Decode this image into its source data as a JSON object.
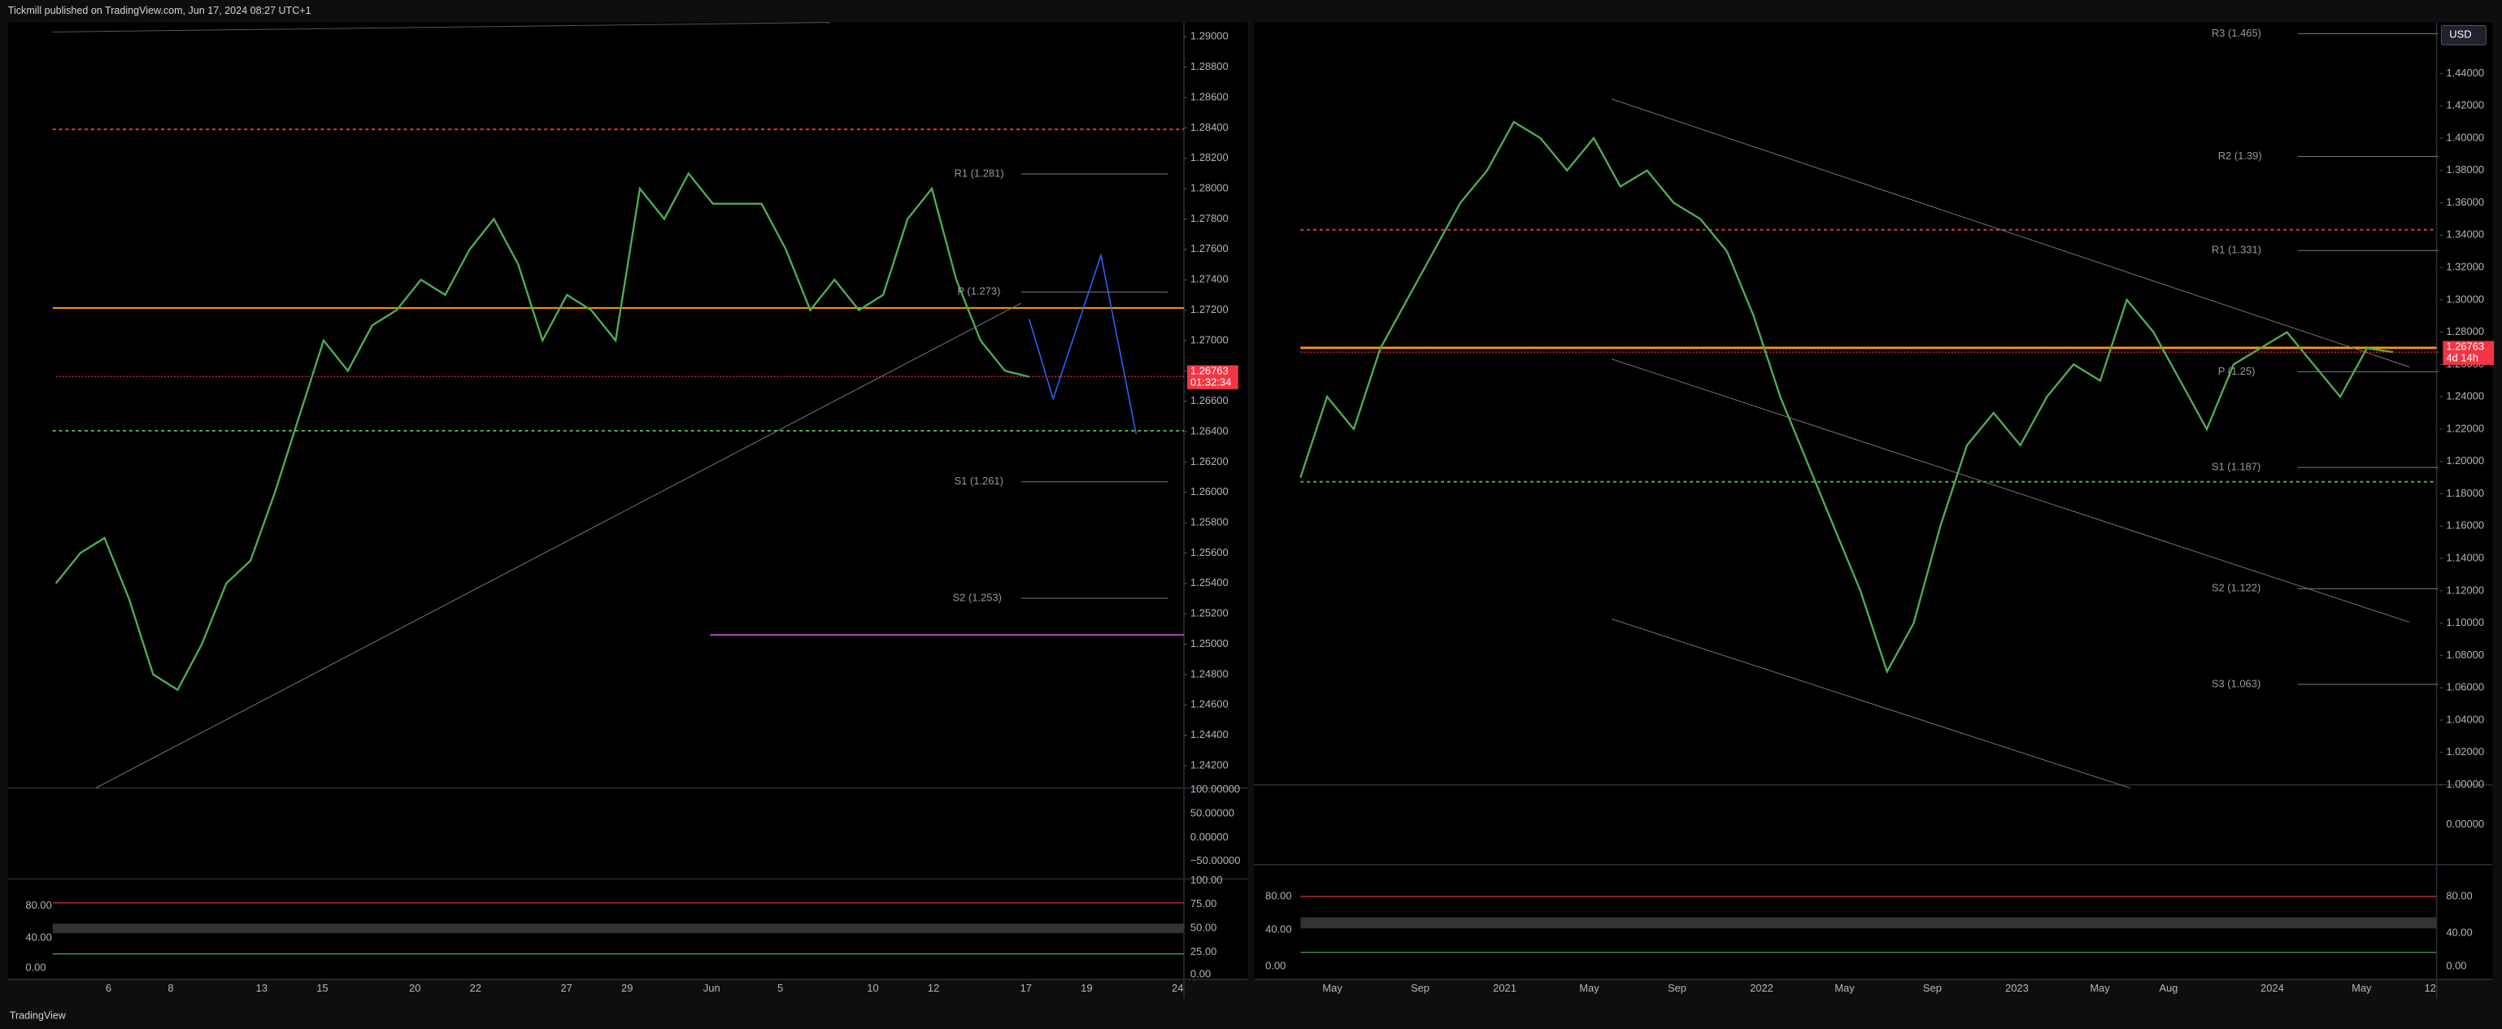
{
  "header": {
    "publisher": "Tickmill published on TradingView.com, Jun 17, 2024 08:27 UTC+1"
  },
  "footer": {
    "brand": "TradingView"
  },
  "charts": [
    {
      "price_axis": {
        "ylim": [
          1.2405,
          1.291
        ],
        "ticks": [
          {
            "value": 1.29,
            "label": "1.29000"
          },
          {
            "value": 1.288,
            "label": "1.28800"
          },
          {
            "value": 1.286,
            "label": "1.28600"
          },
          {
            "value": 1.284,
            "label": "1.28400"
          },
          {
            "value": 1.282,
            "label": "1.28200"
          },
          {
            "value": 1.28,
            "label": "1.28000"
          },
          {
            "value": 1.278,
            "label": "1.27800"
          },
          {
            "value": 1.276,
            "label": "1.27600"
          },
          {
            "value": 1.274,
            "label": "1.27400"
          },
          {
            "value": 1.272,
            "label": "1.27200"
          },
          {
            "value": 1.27,
            "label": "1.27000"
          },
          {
            "value": 1.268,
            "label": "1.26800"
          },
          {
            "value": 1.266,
            "label": "1.26600"
          },
          {
            "value": 1.264,
            "label": "1.26400"
          },
          {
            "value": 1.262,
            "label": "1.26200"
          },
          {
            "value": 1.26,
            "label": "1.26000"
          },
          {
            "value": 1.258,
            "label": "1.25800"
          },
          {
            "value": 1.256,
            "label": "1.25600"
          },
          {
            "value": 1.254,
            "label": "1.25400"
          },
          {
            "value": 1.252,
            "label": "1.25200"
          },
          {
            "value": 1.25,
            "label": "1.25000"
          },
          {
            "value": 1.248,
            "label": "1.24800"
          },
          {
            "value": 1.246,
            "label": "1.24600"
          },
          {
            "value": 1.244,
            "label": "1.24400"
          },
          {
            "value": 1.242,
            "label": "1.24200"
          }
        ]
      },
      "last_price": {
        "value": 1.26763,
        "label": "1.26763",
        "countdown": "01:32:34"
      },
      "closes": [
        1.254,
        1.256,
        1.257,
        1.253,
        1.248,
        1.247,
        1.25,
        1.254,
        1.2555,
        1.26,
        1.265,
        1.27,
        1.268,
        1.271,
        1.272,
        1.274,
        1.273,
        1.276,
        1.278,
        1.275,
        1.27,
        1.273,
        1.272,
        1.27,
        1.28,
        1.278,
        1.281,
        1.279,
        1.279,
        1.279,
        1.276,
        1.272,
        1.274,
        1.272,
        1.273,
        1.278,
        1.28,
        1.274,
        1.27,
        1.268,
        1.2676
      ],
      "pivots": [
        "R1 (1.281)",
        "P (1.273)",
        "S1 (1.261)",
        "S2 (1.253)"
      ],
      "oscillator_ticks": [
        "100.00000",
        "50.00000",
        "0.00000",
        "−50.00000"
      ],
      "stoch_ticks_right": [
        "100.00",
        "75.00",
        "50.00",
        "25.00",
        "0.00"
      ],
      "stoch_ticks_left": [
        "80.00",
        "40.00",
        "0.00"
      ],
      "time_labels": [
        "6",
        "8",
        "13",
        "15",
        "20",
        "22",
        "27",
        "29",
        "Jun",
        "5",
        "10",
        "12",
        "17",
        "19",
        "24"
      ]
    },
    {
      "price_axis": {
        "ylim": [
          1.0,
          1.4716
        ],
        "ticks": [
          {
            "value": 1.44,
            "label": "1.44000"
          },
          {
            "value": 1.42,
            "label": "1.42000"
          },
          {
            "value": 1.4,
            "label": "1.40000"
          },
          {
            "value": 1.38,
            "label": "1.38000"
          },
          {
            "value": 1.36,
            "label": "1.36000"
          },
          {
            "value": 1.34,
            "label": "1.34000"
          },
          {
            "value": 1.32,
            "label": "1.32000"
          },
          {
            "value": 1.3,
            "label": "1.30000"
          },
          {
            "value": 1.28,
            "label": "1.28000"
          },
          {
            "value": 1.26,
            "label": "1.26000"
          },
          {
            "value": 1.24,
            "label": "1.24000"
          },
          {
            "value": 1.22,
            "label": "1.22000"
          },
          {
            "value": 1.2,
            "label": "1.20000"
          },
          {
            "value": 1.18,
            "label": "1.18000"
          },
          {
            "value": 1.16,
            "label": "1.16000"
          },
          {
            "value": 1.14,
            "label": "1.14000"
          },
          {
            "value": 1.12,
            "label": "1.12000"
          },
          {
            "value": 1.1,
            "label": "1.10000"
          },
          {
            "value": 1.08,
            "label": "1.08000"
          },
          {
            "value": 1.06,
            "label": "1.06000"
          },
          {
            "value": 1.04,
            "label": "1.04000"
          },
          {
            "value": 1.02,
            "label": "1.02000"
          },
          {
            "value": 1.0,
            "label": "1.00000"
          }
        ]
      },
      "currency": "USD",
      "last_price": {
        "value": 1.26763,
        "label": "1.26763",
        "countdown": "4d 14h"
      },
      "closes": [
        1.19,
        1.24,
        1.22,
        1.27,
        1.3,
        1.33,
        1.36,
        1.38,
        1.41,
        1.4,
        1.38,
        1.4,
        1.37,
        1.38,
        1.36,
        1.35,
        1.33,
        1.29,
        1.24,
        1.2,
        1.16,
        1.12,
        1.07,
        1.1,
        1.16,
        1.21,
        1.23,
        1.21,
        1.24,
        1.26,
        1.25,
        1.3,
        1.28,
        1.25,
        1.22,
        1.26,
        1.27,
        1.28,
        1.26,
        1.24,
        1.27,
        1.2676
      ],
      "pivots": [
        "R3 (1.465)",
        "R2 (1.39)",
        "R1 (1.331)",
        "P (1.25)",
        "S1 (1.187)",
        "S2 (1.122)",
        "S3 (1.063)"
      ],
      "oscillator_ticks": [
        "0.00000"
      ],
      "stoch_ticks_right": [
        "80.00",
        "40.00",
        "0.00"
      ],
      "stoch_ticks_left": [
        "80.00",
        "40.00",
        "0.00"
      ],
      "time_labels": [
        "May",
        "Sep",
        "2021",
        "May",
        "Sep",
        "2022",
        "May",
        "Sep",
        "2023",
        "May",
        "Aug",
        "2024",
        "May",
        "12"
      ]
    }
  ]
}
